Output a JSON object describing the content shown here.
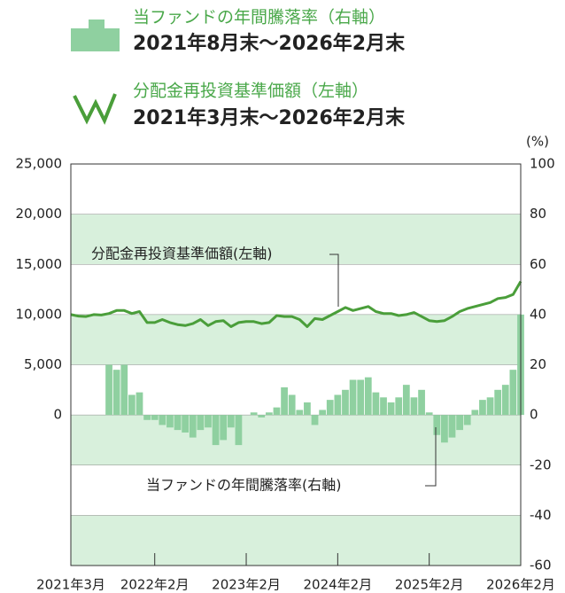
{
  "chart_data": {
    "type": "bar-line",
    "y2label": "(%)",
    "categories": [
      "2021年3月",
      null,
      null,
      null,
      null,
      null,
      null,
      null,
      null,
      null,
      null,
      "2022年2月",
      null,
      null,
      null,
      null,
      null,
      null,
      null,
      null,
      null,
      null,
      null,
      "2023年2月",
      null,
      null,
      null,
      null,
      null,
      null,
      null,
      null,
      null,
      null,
      null,
      "2024年2月",
      null,
      null,
      null,
      null,
      null,
      null,
      null,
      null,
      null,
      null,
      null,
      "2025年2月",
      null,
      null,
      null,
      null,
      null,
      null,
      null,
      null,
      null,
      null,
      null,
      "2026年2月"
    ],
    "ylim": [
      -15000,
      25000
    ],
    "yticks": [
      0,
      {
        "value": 5000,
        "label": "5,000"
      },
      {
        "value": 10000,
        "label": "10,000"
      },
      {
        "value": 15000,
        "label": "15,000"
      },
      {
        "value": 20000,
        "label": "20,000"
      },
      {
        "value": 25000,
        "label": "25,000"
      }
    ],
    "y2lim": [
      -60,
      100
    ],
    "y2ticks": [
      -60,
      -40,
      -20,
      0,
      20,
      40,
      60,
      80,
      100
    ],
    "band_color": "#d8f0dc",
    "annotations": [
      "分配金再投資基準価額(左軸)",
      "当ファンドの年間騰落率(右軸)"
    ],
    "series": [
      {
        "name": "当ファンドの年間騰落率（右軸）",
        "period": "2021年8月末～2026年2月末",
        "type": "bar",
        "axis": "y2",
        "color": "#8fd0a0",
        "values": [
          null,
          null,
          null,
          null,
          null,
          20,
          18,
          20,
          8,
          9,
          -2,
          -2,
          -4,
          -5,
          -6,
          -7,
          -9,
          -6,
          -5,
          -12,
          -10,
          -5,
          -12,
          0,
          1,
          -1,
          1,
          3,
          11,
          8,
          2,
          5,
          -4,
          2,
          6,
          8,
          10,
          14,
          14,
          15,
          9,
          7,
          5,
          7,
          12,
          7,
          10,
          1,
          -8,
          -11,
          -9,
          -6,
          -4,
          2,
          6,
          7,
          10,
          12,
          18,
          40
        ]
      },
      {
        "name": "分配金再投資基準価額（左軸）",
        "period": "2021年3月末～2026年2月末",
        "type": "line",
        "color": "#4a9e3a",
        "values": [
          10000,
          9850,
          9800,
          10000,
          9950,
          10100,
          10400,
          10400,
          10100,
          10300,
          9200,
          9200,
          9500,
          9200,
          9000,
          8900,
          9100,
          9500,
          8900,
          9300,
          9400,
          8800,
          9200,
          9300,
          9300,
          9100,
          9200,
          9900,
          9800,
          9800,
          9500,
          8800,
          9600,
          9500,
          9900,
          10300,
          10700,
          10400,
          10600,
          10800,
          10300,
          10100,
          10100,
          9900,
          10000,
          10200,
          9800,
          9400,
          9300,
          9400,
          9800,
          10300,
          10600,
          10800,
          11000,
          11200,
          11600,
          11700,
          12000,
          13300
        ]
      }
    ]
  }
}
